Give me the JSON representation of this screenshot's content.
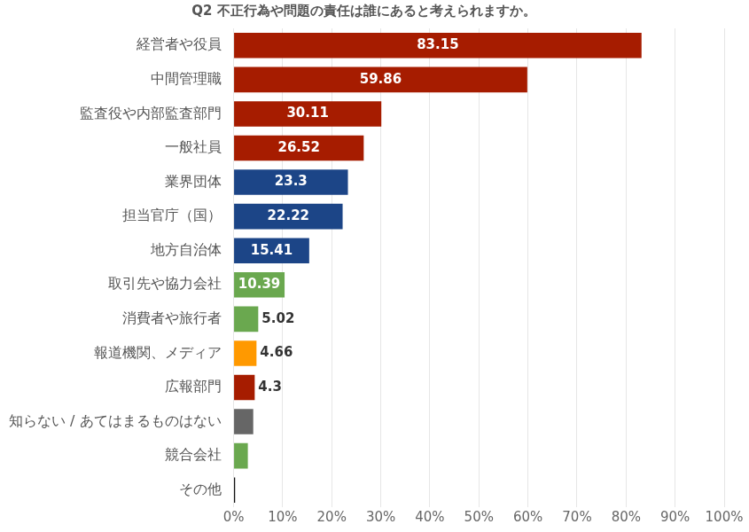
{
  "chart_data": {
    "type": "bar",
    "orientation": "horizontal",
    "title": "Q2 不正行為や問題の責任は誰にあると考えられますか。",
    "categories": [
      "経営者や役員",
      "中間管理職",
      "監査役や内部監査部門",
      "一般社員",
      "業界団体",
      "担当官庁（国）",
      "地方自治体",
      "取引先や協力会社",
      "消費者や旅行者",
      "報道機関、メディア",
      "広報部門",
      "知らない / あてはまるものはない",
      "競合会社",
      "その他"
    ],
    "values": [
      83.15,
      59.86,
      30.11,
      26.52,
      23.3,
      22.22,
      15.41,
      10.39,
      5.02,
      4.66,
      4.3,
      4.0,
      2.9,
      0.3
    ],
    "value_labels": [
      "83.15",
      "59.86",
      "30.11",
      "26.52",
      "23.3",
      "22.22",
      "15.41",
      "10.39",
      "5.02",
      "4.66",
      "4.3",
      null,
      null,
      null
    ],
    "colors": [
      "#a61c00",
      "#a61c00",
      "#a61c00",
      "#a61c00",
      "#1c4587",
      "#1c4587",
      "#1c4587",
      "#6aa84f",
      "#6aa84f",
      "#ff9900",
      "#a61c00",
      "#666666",
      "#6aa84f",
      "#000000"
    ],
    "xlim": [
      0,
      100
    ],
    "xticks": [
      {
        "value": 0,
        "label": "0%"
      },
      {
        "value": 10,
        "label": "10%"
      },
      {
        "value": 20,
        "label": "20%"
      },
      {
        "value": 30,
        "label": "30%"
      },
      {
        "value": 40,
        "label": "40%"
      },
      {
        "value": 50,
        "label": "50%"
      },
      {
        "value": 60,
        "label": "60%"
      },
      {
        "value": 70,
        "label": "70%"
      },
      {
        "value": 80,
        "label": "80%"
      },
      {
        "value": 90,
        "label": "90%"
      },
      {
        "value": 100,
        "label": "100%"
      }
    ],
    "grid": true,
    "data_labels": true
  }
}
